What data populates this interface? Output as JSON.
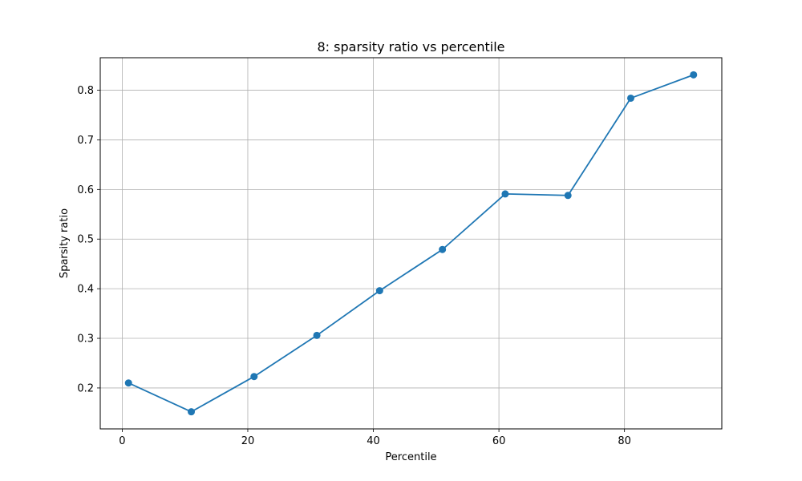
{
  "chart_data": {
    "type": "line",
    "title": "8: sparsity ratio vs percentile",
    "xlabel": "Percentile",
    "ylabel": "Sparsity ratio",
    "xlim": [
      -3.5,
      95.5
    ],
    "ylim": [
      0.1175,
      0.8655
    ],
    "xticks": [
      0,
      20,
      40,
      60,
      80
    ],
    "yticks": [
      0.2,
      0.3,
      0.4,
      0.5,
      0.6,
      0.7,
      0.8
    ],
    "grid": true,
    "series": [
      {
        "x": [
          1,
          11,
          21,
          31,
          41,
          51,
          61,
          71,
          81,
          91
        ],
        "y": [
          0.21,
          0.152,
          0.223,
          0.306,
          0.396,
          0.479,
          0.591,
          0.588,
          0.784,
          0.831
        ],
        "color": "#1f77b4",
        "marker": "circle"
      }
    ]
  }
}
